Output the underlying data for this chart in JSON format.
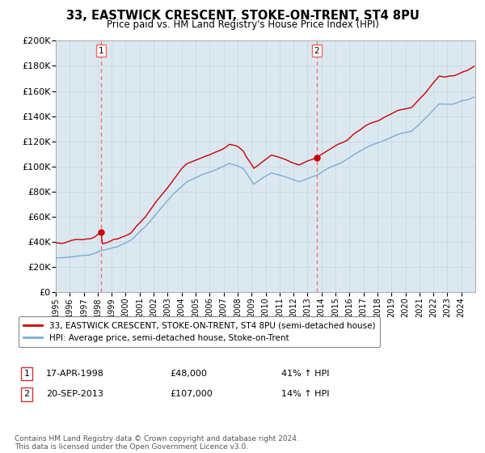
{
  "title": "33, EASTWICK CRESCENT, STOKE-ON-TRENT, ST4 8PU",
  "subtitle": "Price paid vs. HM Land Registry's House Price Index (HPI)",
  "ylim": [
    0,
    200000
  ],
  "yticks": [
    0,
    20000,
    40000,
    60000,
    80000,
    100000,
    120000,
    140000,
    160000,
    180000,
    200000
  ],
  "ytick_labels": [
    "£0",
    "£20K",
    "£40K",
    "£60K",
    "£80K",
    "£100K",
    "£120K",
    "£140K",
    "£160K",
    "£180K",
    "£200K"
  ],
  "sale1_year": 1998,
  "sale1_month": 4,
  "sale1_price": 48000,
  "sale1_date_str": "17-APR-1998",
  "sale1_hpi_pct": "41% ↑ HPI",
  "sale2_year": 2013,
  "sale2_month": 9,
  "sale2_price": 107000,
  "sale2_date_str": "20-SEP-2013",
  "sale2_hpi_pct": "14% ↑ HPI",
  "legend_line1": "33, EASTWICK CRESCENT, STOKE-ON-TRENT, ST4 8PU (semi-detached house)",
  "legend_line2": "HPI: Average price, semi-detached house, Stoke-on-Trent",
  "footer": "Contains HM Land Registry data © Crown copyright and database right 2024.\nThis data is licensed under the Open Government Licence v3.0.",
  "line_color_red": "#cc0000",
  "line_color_blue": "#7aadd4",
  "vline_color": "#ff6666",
  "grid_color": "#c8d8e8",
  "background_color": "#ffffff",
  "plot_bg_color": "#dce8f0"
}
